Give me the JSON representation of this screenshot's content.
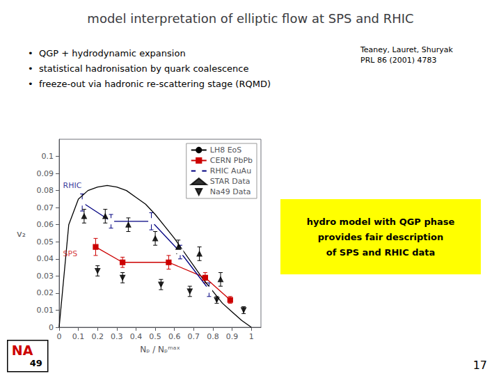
{
  "chart_data": {
    "type": "line",
    "title": "model interpretation of elliptic flow at SPS and RHIC",
    "bullets": [
      "•  QGP + hydrodynamic expansion",
      "•  statistical hadronisation by quark coalescence",
      "•  freeze-out via hadronic re-scattering stage (RQMD)"
    ],
    "reference": "Teaney, Lauret, Shuryak\nPRL 86 (2001) 4783",
    "note": {
      "text": "hydro model with QGP phase\nprovides fair description\nof SPS and RHIC data",
      "color": "#ffff00"
    },
    "logo": [
      {
        "text": "NA",
        "color": "#cc0000"
      },
      {
        "text": "49",
        "color": "#000000"
      }
    ],
    "page_number": "17",
    "x_label": "Nₚ / Nₚᵐᵃˣ",
    "y_label": "v₂",
    "xlim": [
      0,
      1.05
    ],
    "xticks": [
      0,
      0.1,
      0.2,
      0.3,
      0.4,
      0.5,
      0.6,
      0.7,
      0.8,
      0.9,
      1
    ],
    "ylim": [
      0,
      0.11
    ],
    "yticks": [
      0,
      0.01,
      0.02,
      0.03,
      0.04,
      0.05,
      0.06,
      0.07,
      0.08,
      0.09,
      0.1
    ],
    "grid": false,
    "legend": "upper right",
    "annotations": [
      {
        "text": "RHIC",
        "x": 0.02,
        "y": 0.083,
        "color": "#000080"
      },
      {
        "text": "SPS",
        "x": 0.02,
        "y": 0.043,
        "color": "#cc0000"
      }
    ],
    "series": [
      {
        "name": "LH8 EoS",
        "type": "line",
        "color": "#000000",
        "marker": "none",
        "line_style": "solid",
        "x": [
          0.0,
          0.05,
          0.1,
          0.15,
          0.2,
          0.25,
          0.3,
          0.35,
          0.4,
          0.45,
          0.5,
          0.55,
          0.6,
          0.65,
          0.7,
          0.75,
          0.8,
          0.85,
          0.9,
          0.95,
          1.0
        ],
        "values": [
          0.0,
          0.06,
          0.075,
          0.08,
          0.082,
          0.083,
          0.082,
          0.08,
          0.076,
          0.072,
          0.066,
          0.059,
          0.052,
          0.044,
          0.036,
          0.028,
          0.021,
          0.014,
          0.009,
          0.004,
          0.0
        ]
      },
      {
        "name": "CERN PbPb",
        "type": "line",
        "color": "#cc0000",
        "marker": "square",
        "line_style": "solid",
        "x": [
          0.19,
          0.33,
          0.57,
          0.76,
          0.89
        ],
        "values": [
          0.047,
          0.038,
          0.038,
          0.029,
          0.016
        ],
        "yerr": [
          0.005,
          0.003,
          0.004,
          0.003,
          0.002
        ]
      },
      {
        "name": "RHIC AuAu",
        "type": "line",
        "color": "#000080",
        "marker": "open_square",
        "line_style": "solid",
        "x": [
          0.12,
          0.27,
          0.48,
          0.63,
          0.78
        ],
        "values": [
          0.073,
          0.062,
          0.062,
          0.044,
          0.022
        ],
        "yerr": [
          0.005,
          0.004,
          0.005,
          0.004,
          0.004
        ]
      },
      {
        "name": "STAR Data",
        "type": "scatter",
        "color": "#000000",
        "marker": "triangle_up",
        "line_style": "none",
        "x": [
          0.13,
          0.24,
          0.36,
          0.5,
          0.62,
          0.73,
          0.84
        ],
        "values": [
          0.065,
          0.065,
          0.06,
          0.052,
          0.047,
          0.043,
          0.028
        ],
        "yerr": [
          0.004,
          0.004,
          0.004,
          0.004,
          0.004,
          0.004,
          0.004
        ]
      },
      {
        "name": "Na49 Data",
        "type": "scatter",
        "color": "#000000",
        "marker": "triangle_down",
        "line_style": "none",
        "x": [
          0.2,
          0.33,
          0.53,
          0.68,
          0.82,
          0.96
        ],
        "values": [
          0.033,
          0.029,
          0.025,
          0.021,
          0.016,
          0.01
        ],
        "yerr": [
          0.003,
          0.003,
          0.003,
          0.003,
          0.002,
          0.002
        ]
      }
    ]
  }
}
